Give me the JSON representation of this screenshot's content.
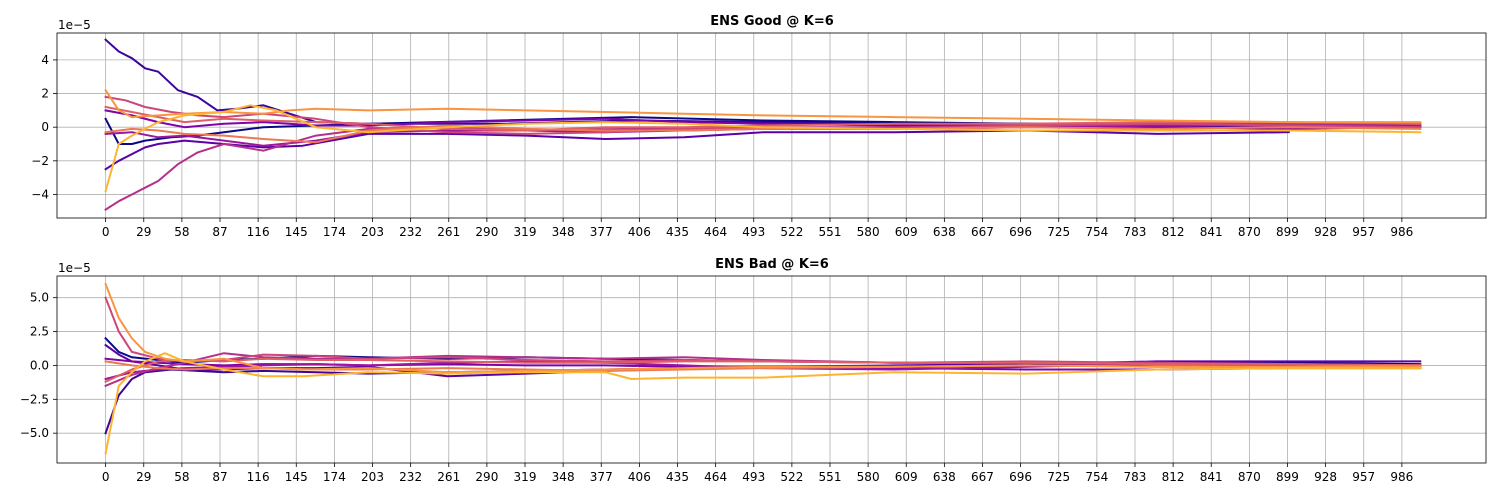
{
  "chart_data": [
    {
      "type": "line",
      "title": "ENS Good @ K=6",
      "offset_text": "1e−5",
      "xlim": [
        -37,
        1050
      ],
      "ylim": [
        -5.4,
        5.6
      ],
      "xticks": [
        0,
        29,
        58,
        87,
        116,
        145,
        174,
        203,
        232,
        261,
        290,
        319,
        348,
        377,
        406,
        435,
        464,
        493,
        522,
        551,
        580,
        609,
        638,
        667,
        696,
        725,
        754,
        783,
        812,
        841,
        870,
        899,
        928,
        957,
        986
      ],
      "yticks": [
        -4,
        -2,
        0,
        2,
        4
      ],
      "ytick_labels": [
        "−4",
        "−2",
        "0",
        "2",
        "4"
      ],
      "grid": true,
      "series": [
        {
          "color": "#3b049a",
          "x": [
            0,
            10,
            20,
            30,
            40,
            55,
            70,
            85,
            100,
            120,
            160,
            200,
            300,
            400,
            500,
            600,
            700,
            800,
            900,
            1000
          ],
          "y": [
            5.2,
            4.5,
            4.1,
            3.5,
            3.3,
            2.2,
            1.8,
            1.0,
            1.1,
            1.3,
            0.3,
            0.2,
            0.2,
            0.4,
            0.3,
            0.2,
            0.2,
            0.2,
            0.1,
            0.1
          ]
        },
        {
          "color": "#0d0887",
          "x": [
            0,
            10,
            20,
            30,
            50,
            70,
            90,
            120,
            160,
            200,
            300,
            400,
            500,
            600,
            700,
            800,
            900
          ],
          "y": [
            0.5,
            -1.0,
            -1.0,
            -0.8,
            -0.6,
            -0.5,
            -0.3,
            0.0,
            0.1,
            0.2,
            0.4,
            0.6,
            0.4,
            0.3,
            0.2,
            0.1,
            0.0
          ]
        },
        {
          "color": "#5c01a6",
          "x": [
            0,
            10,
            20,
            30,
            40,
            60,
            90,
            120,
            150,
            200,
            260,
            320,
            380,
            440,
            500,
            600,
            700,
            800,
            900
          ],
          "y": [
            -2.5,
            -2.0,
            -1.6,
            -1.2,
            -1.0,
            -0.8,
            -1.0,
            -1.2,
            -1.1,
            -0.4,
            -0.4,
            -0.5,
            -0.7,
            -0.6,
            -0.3,
            -0.3,
            -0.2,
            -0.4,
            -0.3
          ]
        },
        {
          "color": "#7e03a8",
          "x": [
            0,
            20,
            40,
            60,
            90,
            120,
            160,
            200,
            260,
            320,
            380,
            440,
            500,
            600,
            700,
            800,
            900,
            1000
          ],
          "y": [
            1.0,
            0.7,
            0.3,
            0.0,
            0.2,
            0.3,
            0.1,
            0.1,
            0.3,
            0.4,
            0.5,
            0.3,
            0.2,
            0.1,
            0.1,
            0.0,
            -0.1,
            0.0
          ]
        },
        {
          "color": "#9c179e",
          "x": [
            0,
            20,
            40,
            60,
            90,
            120,
            160,
            200,
            260,
            320,
            380,
            440,
            500,
            600,
            700,
            800,
            900,
            1000
          ],
          "y": [
            -0.4,
            -0.3,
            -0.6,
            -0.5,
            -0.8,
            -1.1,
            -0.8,
            -0.3,
            -0.2,
            -0.2,
            -0.3,
            -0.2,
            -0.1,
            -0.1,
            0.0,
            0.1,
            0.1,
            0.1
          ]
        },
        {
          "color": "#b52f8c",
          "x": [
            0,
            10,
            20,
            30,
            40,
            55,
            70,
            90,
            120,
            160,
            200,
            260,
            320,
            400,
            500,
            600,
            700,
            800,
            900,
            1000
          ],
          "y": [
            -4.9,
            -4.4,
            -4.0,
            -3.6,
            -3.2,
            -2.2,
            -1.5,
            -1.0,
            -1.4,
            -0.5,
            -0.1,
            0.0,
            -0.2,
            -0.1,
            0.0,
            0.0,
            0.1,
            0.2,
            0.2,
            0.2
          ]
        },
        {
          "color": "#cc4778",
          "x": [
            0,
            15,
            30,
            50,
            70,
            90,
            120,
            160,
            200,
            260,
            320,
            380,
            440,
            500,
            600,
            700,
            800,
            900,
            1000
          ],
          "y": [
            1.8,
            1.6,
            1.2,
            0.9,
            0.7,
            0.6,
            0.8,
            0.5,
            0.0,
            -0.3,
            -0.4,
            -0.3,
            -0.1,
            0.0,
            -0.1,
            0.1,
            0.2,
            0.1,
            0.0
          ]
        },
        {
          "color": "#de5f65",
          "x": [
            0,
            20,
            40,
            60,
            90,
            120,
            160,
            200,
            260,
            320,
            380,
            440,
            500,
            600,
            700,
            800,
            900,
            1000
          ],
          "y": [
            1.2,
            0.9,
            0.6,
            0.3,
            0.5,
            0.4,
            0.3,
            0.2,
            -0.1,
            -0.2,
            0.0,
            0.0,
            0.1,
            0.2,
            0.2,
            0.3,
            0.3,
            0.2
          ]
        },
        {
          "color": "#ed7953",
          "x": [
            0,
            20,
            40,
            60,
            90,
            120,
            160,
            200,
            260,
            320,
            380,
            440,
            500,
            600,
            700,
            800,
            900,
            1000
          ],
          "y": [
            -0.3,
            -0.1,
            -0.2,
            -0.4,
            -0.5,
            -0.7,
            -0.9,
            -0.2,
            0.1,
            -0.1,
            -0.2,
            -0.2,
            -0.1,
            -0.1,
            0.0,
            -0.1,
            0.0,
            -0.1
          ]
        },
        {
          "color": "#f89540",
          "x": [
            0,
            10,
            20,
            40,
            60,
            90,
            120,
            140,
            160,
            200,
            260,
            320,
            380,
            440,
            500,
            600,
            700,
            800,
            900,
            1000
          ],
          "y": [
            2.2,
            1.0,
            0.6,
            0.7,
            0.8,
            0.9,
            0.8,
            1.0,
            1.1,
            1.0,
            1.1,
            1.0,
            0.9,
            0.8,
            0.7,
            0.6,
            0.5,
            0.4,
            0.3,
            0.3
          ]
        },
        {
          "color": "#fdb42f",
          "x": [
            0,
            10,
            20,
            40,
            60,
            90,
            110,
            130,
            160,
            200,
            260,
            320,
            380,
            440,
            500,
            600,
            700,
            800,
            900,
            1000
          ],
          "y": [
            -3.8,
            -1.0,
            -0.5,
            0.3,
            0.7,
            0.9,
            1.3,
            1.0,
            0.0,
            -0.3,
            0.0,
            0.2,
            0.3,
            0.2,
            0.0,
            -0.1,
            -0.2,
            -0.2,
            -0.2,
            -0.3
          ]
        }
      ]
    },
    {
      "type": "line",
      "title": "ENS Bad @ K=6",
      "offset_text": "1e−5",
      "xlim": [
        -37,
        1050
      ],
      "ylim": [
        -7.2,
        6.6
      ],
      "xticks": [
        0,
        29,
        58,
        87,
        116,
        145,
        174,
        203,
        232,
        261,
        290,
        319,
        348,
        377,
        406,
        435,
        464,
        493,
        522,
        551,
        580,
        609,
        638,
        667,
        696,
        725,
        754,
        783,
        812,
        841,
        870,
        899,
        928,
        957,
        986
      ],
      "yticks": [
        -5.0,
        -2.5,
        0.0,
        2.5,
        5.0
      ],
      "ytick_labels": [
        "−5.0",
        "−2.5",
        "0.0",
        "2.5",
        "5.0"
      ],
      "grid": true,
      "series": [
        {
          "color": "#0d0887",
          "x": [
            0,
            10,
            20,
            40,
            60,
            90,
            120,
            160,
            200,
            260,
            320,
            380,
            440,
            500,
            600,
            700,
            800,
            900,
            1000
          ],
          "y": [
            2.0,
            1.0,
            0.6,
            0.4,
            0.2,
            0.4,
            0.5,
            0.7,
            0.6,
            0.5,
            0.6,
            0.5,
            0.4,
            0.3,
            0.2,
            0.2,
            0.2,
            0.2,
            0.1
          ]
        },
        {
          "color": "#3b049a",
          "x": [
            0,
            10,
            20,
            30,
            50,
            70,
            90,
            120,
            160,
            200,
            260,
            320,
            380,
            440,
            500,
            600,
            700,
            800,
            900,
            1000
          ],
          "y": [
            -5.0,
            -2.2,
            -1.0,
            -0.5,
            -0.3,
            -0.4,
            -0.5,
            -0.4,
            -0.5,
            -0.6,
            -0.5,
            -0.4,
            -0.3,
            -0.2,
            -0.1,
            -0.1,
            0.0,
            0.1,
            0.1,
            0.0
          ]
        },
        {
          "color": "#5c01a6",
          "x": [
            0,
            10,
            20,
            40,
            60,
            90,
            120,
            160,
            200,
            260,
            320,
            380,
            440,
            500,
            600,
            700,
            800,
            900,
            1000
          ],
          "y": [
            1.5,
            0.8,
            0.3,
            0.0,
            -0.3,
            -0.3,
            -0.2,
            -0.2,
            -0.1,
            -0.8,
            -0.6,
            -0.4,
            -0.2,
            -0.1,
            0.0,
            0.1,
            0.3,
            0.3,
            0.3
          ]
        },
        {
          "color": "#7e03a8",
          "x": [
            0,
            20,
            40,
            60,
            90,
            120,
            160,
            200,
            260,
            320,
            380,
            440,
            500,
            600,
            700,
            800,
            900,
            1000
          ],
          "y": [
            0.5,
            0.3,
            0.2,
            0.1,
            0.0,
            0.1,
            0.1,
            0.0,
            0.1,
            0.0,
            0.0,
            -0.1,
            -0.1,
            -0.2,
            -0.3,
            -0.3,
            -0.2,
            -0.2
          ]
        },
        {
          "color": "#9c179e",
          "x": [
            0,
            20,
            40,
            60,
            90,
            120,
            160,
            200,
            260,
            320,
            380,
            440,
            500,
            600,
            700,
            800,
            900,
            1000
          ],
          "y": [
            -1.0,
            -0.5,
            -0.3,
            -0.2,
            -0.1,
            0.0,
            0.1,
            0.0,
            0.2,
            0.3,
            0.2,
            0.0,
            -0.2,
            -0.3,
            -0.1,
            0.1,
            0.0,
            -0.1
          ]
        },
        {
          "color": "#b52f8c",
          "x": [
            0,
            20,
            40,
            60,
            90,
            120,
            160,
            200,
            260,
            320,
            380,
            440,
            500,
            600,
            700,
            800,
            900,
            1000
          ],
          "y": [
            -1.5,
            -0.7,
            -0.2,
            0.2,
            0.9,
            0.6,
            0.5,
            0.5,
            0.7,
            0.6,
            0.5,
            0.6,
            0.4,
            0.2,
            0.2,
            0.1,
            0.0,
            0.0
          ]
        },
        {
          "color": "#cc4778",
          "x": [
            0,
            10,
            20,
            40,
            60,
            90,
            120,
            160,
            200,
            260,
            320,
            380,
            440,
            500,
            600,
            700,
            800,
            900,
            1000
          ],
          "y": [
            5.0,
            2.5,
            1.0,
            0.5,
            0.3,
            0.4,
            0.8,
            0.7,
            0.5,
            0.6,
            0.4,
            0.3,
            0.4,
            0.3,
            0.2,
            0.3,
            0.2,
            0.1,
            0.0
          ]
        },
        {
          "color": "#de5f65",
          "x": [
            0,
            20,
            40,
            60,
            90,
            120,
            160,
            200,
            260,
            320,
            380,
            440,
            500,
            600,
            700,
            800,
            900,
            1000
          ],
          "y": [
            -1.2,
            -0.3,
            0.3,
            0.4,
            0.3,
            0.5,
            0.4,
            0.4,
            0.3,
            0.2,
            0.2,
            0.3,
            0.3,
            0.2,
            0.2,
            0.1,
            0.1,
            0.0
          ]
        },
        {
          "color": "#ed7953",
          "x": [
            0,
            20,
            40,
            60,
            90,
            120,
            160,
            200,
            260,
            320,
            380,
            440,
            500,
            600,
            700,
            800,
            900,
            1000
          ],
          "y": [
            0.3,
            0.0,
            -0.2,
            -0.3,
            -0.2,
            -0.2,
            -0.3,
            -0.3,
            -0.2,
            -0.3,
            -0.4,
            -0.3,
            -0.2,
            -0.1,
            0.0,
            -0.1,
            -0.1,
            0.0
          ]
        },
        {
          "color": "#f89540",
          "x": [
            0,
            10,
            20,
            30,
            45,
            60,
            90,
            120,
            150,
            200,
            260,
            320,
            380,
            440,
            500,
            600,
            700,
            800,
            900,
            1000
          ],
          "y": [
            6.0,
            3.5,
            2.0,
            1.0,
            0.5,
            0.3,
            0.5,
            -0.2,
            -0.3,
            -0.2,
            -0.5,
            -0.4,
            -0.3,
            -0.2,
            -0.1,
            -0.1,
            0.0,
            -0.1,
            -0.1,
            -0.1
          ]
        },
        {
          "color": "#fdb42f",
          "x": [
            0,
            10,
            20,
            30,
            45,
            60,
            90,
            120,
            150,
            200,
            260,
            320,
            380,
            400,
            440,
            500,
            600,
            700,
            800,
            900,
            1000
          ],
          "y": [
            -6.5,
            -1.5,
            -0.5,
            0.3,
            0.9,
            0.3,
            -0.3,
            -0.8,
            -0.8,
            -0.5,
            -0.6,
            -0.5,
            -0.5,
            -1.0,
            -0.9,
            -0.9,
            -0.5,
            -0.6,
            -0.3,
            -0.2,
            -0.2
          ]
        }
      ]
    }
  ]
}
